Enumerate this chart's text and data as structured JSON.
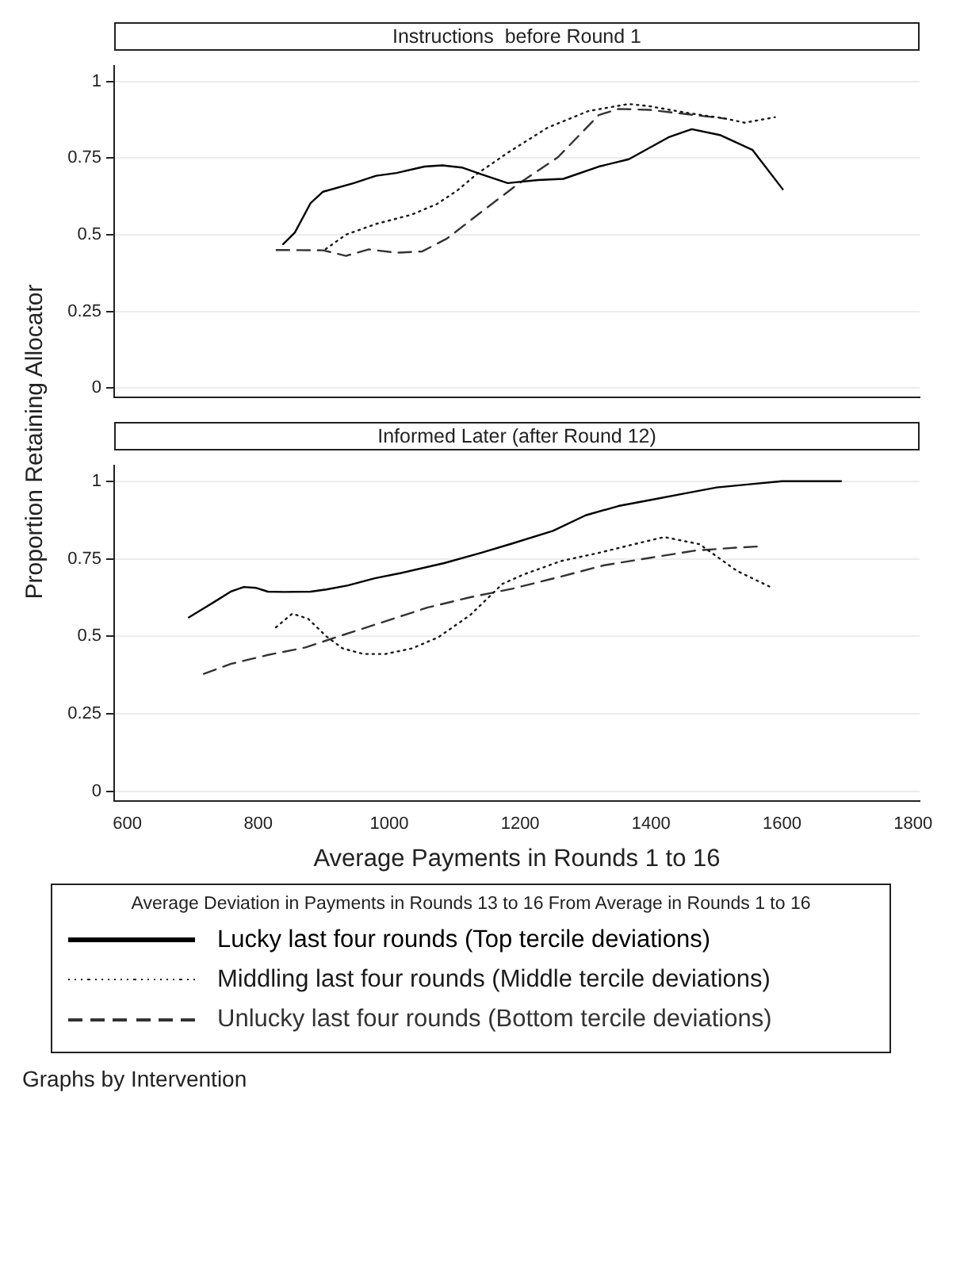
{
  "chart_data": [
    {
      "type": "line",
      "title": "Instructions  before Round 1",
      "ylabel": "Proportion Retaining Allocator",
      "xlim": [
        580,
        1810
      ],
      "xticks": [
        600,
        800,
        1000,
        1200,
        1400,
        1600,
        1800
      ],
      "ylim": [
        -0.03,
        1.05
      ],
      "yticks": [
        0,
        0.25,
        0.5,
        0.75,
        1
      ],
      "grid": "y",
      "tick_labels": "y",
      "series": [
        {
          "color": "#000000",
          "line_style": "solid",
          "x": [
            838,
            856,
            880,
            899,
            946,
            980,
            1011,
            1054,
            1081,
            1111,
            1142,
            1181,
            1227,
            1266,
            1320,
            1366,
            1428,
            1462,
            1505,
            1555,
            1601
          ],
          "values": [
            0.469,
            0.507,
            0.603,
            0.64,
            0.668,
            0.692,
            0.701,
            0.722,
            0.726,
            0.719,
            0.696,
            0.668,
            0.678,
            0.682,
            0.722,
            0.746,
            0.819,
            0.844,
            0.825,
            0.776,
            0.648
          ]
        },
        {
          "color": "#1a1a1a",
          "line_style": "dotted",
          "x": [
            903,
            934,
            980,
            1034,
            1073,
            1104,
            1134,
            1181,
            1242,
            1304,
            1366,
            1397,
            1458,
            1512,
            1543,
            1589
          ],
          "values": [
            0.453,
            0.5,
            0.535,
            0.565,
            0.6,
            0.644,
            0.698,
            0.767,
            0.849,
            0.903,
            0.926,
            0.919,
            0.896,
            0.879,
            0.865,
            0.883
          ]
        },
        {
          "color": "#333333",
          "line_style": "dashed",
          "x": [
            828,
            899,
            934,
            969,
            1011,
            1050,
            1088,
            1142,
            1196,
            1258,
            1320,
            1350,
            1397,
            1458,
            1512
          ],
          "values": [
            0.45,
            0.449,
            0.431,
            0.452,
            0.441,
            0.445,
            0.487,
            0.576,
            0.664,
            0.753,
            0.89,
            0.91,
            0.907,
            0.892,
            0.879
          ]
        }
      ]
    },
    {
      "type": "line",
      "title": "Informed Later (after Round 12)",
      "xlabel": "Average Payments in Rounds 1 to 16",
      "xlim": [
        580,
        1810
      ],
      "xticks": [
        600,
        800,
        1000,
        1200,
        1400,
        1600,
        1800
      ],
      "ylim": [
        -0.03,
        1.05
      ],
      "yticks": [
        0,
        0.25,
        0.5,
        0.75,
        1
      ],
      "grid": "y",
      "legend": "bottom",
      "legend_title": "Average Deviation in Payments in Rounds 13 to 16 From Average in Rounds 1 to 16",
      "annotations": [
        "Graphs by Intervention"
      ],
      "series": [
        {
          "name": "Lucky last four rounds (Top tercile deviations)",
          "color": "#000000",
          "line_style": "solid",
          "x": [
            694,
            733,
            758,
            778,
            797,
            815,
            839,
            880,
            904,
            937,
            978,
            1018,
            1084,
            1140,
            1189,
            1250,
            1300,
            1350,
            1400,
            1450,
            1500,
            1550,
            1600,
            1690
          ],
          "values": [
            0.561,
            0.611,
            0.644,
            0.659,
            0.656,
            0.644,
            0.643,
            0.644,
            0.651,
            0.664,
            0.687,
            0.704,
            0.736,
            0.769,
            0.8,
            0.84,
            0.89,
            0.92,
            0.94,
            0.96,
            0.98,
            0.99,
            1,
            1
          ]
        },
        {
          "name": "Middling last four rounds (Middle tercile deviations)",
          "color": "#1a1a1a",
          "line_style": "dotted",
          "x": [
            827,
            852,
            876,
            904,
            929,
            961,
            994,
            1035,
            1075,
            1124,
            1173,
            1206,
            1263,
            1320,
            1380,
            1420,
            1474,
            1531,
            1587
          ],
          "values": [
            0.529,
            0.573,
            0.557,
            0.5,
            0.461,
            0.443,
            0.443,
            0.461,
            0.497,
            0.569,
            0.669,
            0.7,
            0.743,
            0.769,
            0.8,
            0.82,
            0.797,
            0.711,
            0.654
          ]
        },
        {
          "name": "Unlucky last four rounds (Bottom tercile deviations)",
          "color": "#333333",
          "line_style": "dashed",
          "x": [
            717,
            758,
            815,
            872,
            929,
            986,
            1059,
            1124,
            1189,
            1263,
            1328,
            1401,
            1466,
            1531,
            1568
          ],
          "values": [
            0.379,
            0.411,
            0.44,
            0.464,
            0.504,
            0.543,
            0.593,
            0.626,
            0.654,
            0.693,
            0.729,
            0.754,
            0.776,
            0.786,
            0.79
          ]
        }
      ]
    }
  ]
}
